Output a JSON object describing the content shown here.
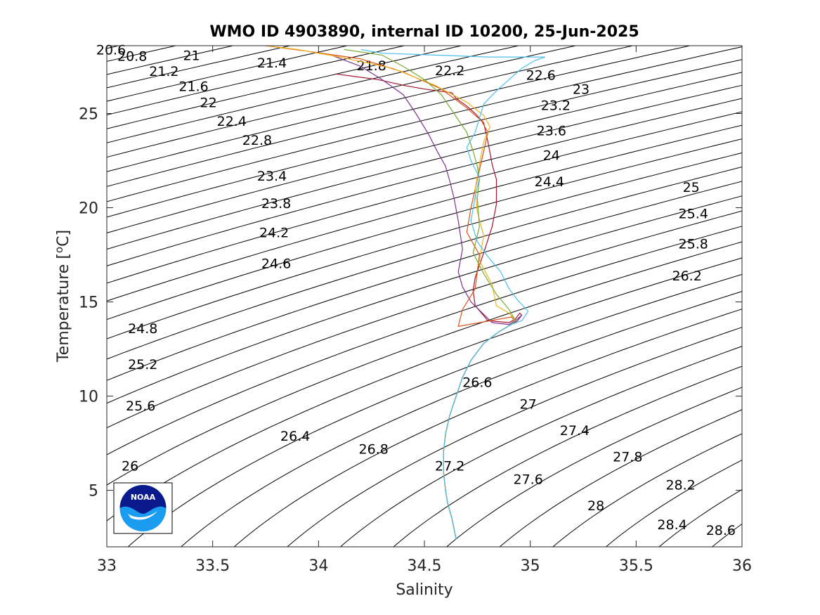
{
  "chart_data": {
    "type": "line",
    "title": "WMO ID 4903890, internal ID 10200, 25-Jun-2025",
    "xlabel": "Salinity",
    "ylabel": "Temperature [",
    "ylabel_unit_sup": "o",
    "ylabel_unit": "C]",
    "xlim": [
      33,
      36
    ],
    "ylim": [
      2.0,
      28.6
    ],
    "xticks": [
      33,
      33.5,
      34,
      34.5,
      35,
      35.5,
      36
    ],
    "xtick_labels": [
      "33",
      "33.5",
      "34",
      "34.5",
      "35",
      "35.5",
      "36"
    ],
    "yticks": [
      5,
      10,
      15,
      20,
      25
    ],
    "ytick_labels": [
      "5",
      "10",
      "15",
      "20",
      "25"
    ],
    "grid": false,
    "density_contours": {
      "levels_min": 20.6,
      "levels_max": 28.6,
      "step": 0.2,
      "labels": [
        {
          "text": "20.6",
          "s": 33.02,
          "t": 28.4
        },
        {
          "text": "20.8",
          "s": 33.12,
          "t": 28.05
        },
        {
          "text": "21",
          "s": 33.4,
          "t": 28.1
        },
        {
          "text": "21.2",
          "s": 33.27,
          "t": 27.25
        },
        {
          "text": "21.4",
          "s": 33.78,
          "t": 27.7
        },
        {
          "text": "21.6",
          "s": 33.41,
          "t": 26.45
        },
        {
          "text": "21.8",
          "s": 34.25,
          "t": 27.55
        },
        {
          "text": "22",
          "s": 33.48,
          "t": 25.6
        },
        {
          "text": "22.2",
          "s": 34.62,
          "t": 27.3
        },
        {
          "text": "22.4",
          "s": 33.59,
          "t": 24.6
        },
        {
          "text": "22.6",
          "s": 35.05,
          "t": 27.05
        },
        {
          "text": "22.8",
          "s": 33.71,
          "t": 23.6
        },
        {
          "text": "23",
          "s": 35.24,
          "t": 26.3
        },
        {
          "text": "23.2",
          "s": 35.12,
          "t": 25.45
        },
        {
          "text": "23.4",
          "s": 33.78,
          "t": 21.7
        },
        {
          "text": "23.6",
          "s": 35.1,
          "t": 24.1
        },
        {
          "text": "23.8",
          "s": 33.8,
          "t": 20.25
        },
        {
          "text": "24",
          "s": 35.1,
          "t": 22.8
        },
        {
          "text": "24.2",
          "s": 33.79,
          "t": 18.7
        },
        {
          "text": "24.4",
          "s": 35.09,
          "t": 21.4
        },
        {
          "text": "24.6",
          "s": 33.8,
          "t": 17.05
        },
        {
          "text": "24.8",
          "s": 33.17,
          "t": 13.6
        },
        {
          "text": "25",
          "s": 35.76,
          "t": 21.1
        },
        {
          "text": "25.2",
          "s": 33.17,
          "t": 11.7
        },
        {
          "text": "25.4",
          "s": 35.77,
          "t": 19.7
        },
        {
          "text": "25.6",
          "s": 33.16,
          "t": 9.5
        },
        {
          "text": "25.8",
          "s": 35.77,
          "t": 18.1
        },
        {
          "text": "26",
          "s": 33.11,
          "t": 6.3
        },
        {
          "text": "26.2",
          "s": 35.74,
          "t": 16.4
        },
        {
          "text": "26.4",
          "s": 33.89,
          "t": 7.9
        },
        {
          "text": "26.6",
          "s": 34.75,
          "t": 10.75
        },
        {
          "text": "26.8",
          "s": 34.26,
          "t": 7.2
        },
        {
          "text": "27",
          "s": 34.99,
          "t": 9.6
        },
        {
          "text": "27.2",
          "s": 34.62,
          "t": 6.3
        },
        {
          "text": "27.4",
          "s": 35.21,
          "t": 8.2
        },
        {
          "text": "27.6",
          "s": 34.99,
          "t": 5.6
        },
        {
          "text": "27.8",
          "s": 35.46,
          "t": 6.8
        },
        {
          "text": "28",
          "s": 35.31,
          "t": 4.2
        },
        {
          "text": "28.2",
          "s": 35.71,
          "t": 5.3
        },
        {
          "text": "28.4",
          "s": 35.67,
          "t": 3.2
        },
        {
          "text": "28.6",
          "s": 35.9,
          "t": 2.9
        }
      ]
    },
    "series": [
      {
        "color": "#a2142f",
        "s": [
          34.65,
          34.63,
          34.61,
          34.6,
          34.59,
          34.59,
          34.6,
          34.62,
          34.65,
          34.68,
          34.72,
          34.78,
          34.85,
          34.91,
          34.94,
          34.96,
          34.95,
          34.93,
          34.9,
          34.8,
          34.74,
          34.73,
          34.74,
          34.78,
          34.82,
          34.84,
          34.84,
          34.82,
          34.8,
          34.78,
          34.74,
          34.7,
          34.65,
          34.63,
          34.5,
          34.4,
          34.28,
          34.08
        ],
        "t": [
          2.4,
          3.5,
          4.3,
          5.0,
          6.0,
          7.0,
          8.0,
          9.0,
          10.0,
          11.0,
          11.9,
          12.8,
          13.4,
          13.8,
          14.0,
          14.3,
          14.4,
          14.1,
          13.9,
          14.0,
          14.8,
          15.6,
          16.3,
          17.6,
          19.0,
          20.2,
          21.5,
          22.3,
          23.5,
          24.5,
          25.0,
          25.4,
          25.8,
          26.1,
          26.3,
          26.5,
          26.8,
          27.1
        ]
      },
      {
        "color": "#7e2f8e",
        "s": [
          34.65,
          34.63,
          34.61,
          34.6,
          34.59,
          34.59,
          34.6,
          34.62,
          34.65,
          34.68,
          34.72,
          34.78,
          34.85,
          34.91,
          34.94,
          34.96,
          34.94,
          34.9,
          34.82,
          34.72,
          34.68,
          34.66,
          34.68,
          34.66,
          34.64,
          34.62,
          34.6,
          34.56,
          34.52,
          34.46,
          34.4,
          34.3,
          34.2,
          34.06
        ],
        "t": [
          2.4,
          3.5,
          4.3,
          5.0,
          6.0,
          7.0,
          8.0,
          9.0,
          10.0,
          11.0,
          11.9,
          12.8,
          13.4,
          13.8,
          14.0,
          14.3,
          14.1,
          13.8,
          13.9,
          15.0,
          15.8,
          16.6,
          17.8,
          19.3,
          20.5,
          21.4,
          22.2,
          23.0,
          23.9,
          25.0,
          26.0,
          26.8,
          27.5,
          28.1
        ]
      },
      {
        "color": "#d95319",
        "s": [
          34.65,
          34.63,
          34.61,
          34.6,
          34.59,
          34.59,
          34.6,
          34.62,
          34.65,
          34.68,
          34.72,
          34.78,
          34.85,
          34.91,
          34.93,
          34.91,
          34.66,
          34.68,
          34.74,
          34.76,
          34.7,
          34.72,
          34.75,
          34.78,
          34.8,
          34.77,
          34.7,
          34.58,
          34.4,
          34.2,
          33.95,
          33.75
        ],
        "t": [
          2.4,
          3.5,
          4.3,
          5.0,
          6.0,
          7.0,
          8.0,
          9.0,
          10.0,
          11.0,
          11.9,
          12.8,
          13.4,
          13.8,
          14.0,
          14.2,
          13.7,
          14.6,
          15.7,
          17.5,
          18.7,
          20.0,
          21.5,
          23.0,
          24.0,
          24.6,
          25.3,
          26.3,
          27.2,
          27.9,
          28.3,
          28.6
        ]
      },
      {
        "color": "#edb120",
        "s": [
          34.65,
          34.63,
          34.61,
          34.6,
          34.59,
          34.59,
          34.6,
          34.62,
          34.65,
          34.68,
          34.72,
          34.78,
          34.85,
          34.91,
          34.93,
          34.9,
          34.84,
          34.82,
          34.76,
          34.78,
          34.75,
          34.74,
          34.76,
          34.78,
          34.81,
          34.78,
          34.7,
          34.55,
          34.35,
          34.1,
          33.9,
          33.75
        ],
        "t": [
          2.4,
          3.5,
          4.3,
          5.0,
          6.0,
          7.0,
          8.0,
          9.0,
          10.0,
          11.0,
          11.9,
          12.8,
          13.4,
          13.8,
          14.0,
          14.4,
          14.8,
          15.9,
          17.2,
          18.5,
          19.8,
          21.0,
          22.3,
          23.5,
          24.3,
          24.9,
          25.6,
          26.5,
          27.4,
          28.0,
          28.4,
          28.6
        ]
      },
      {
        "color": "#77ac30",
        "s": [
          34.65,
          34.63,
          34.61,
          34.6,
          34.59,
          34.59,
          34.6,
          34.62,
          34.65,
          34.68,
          34.72,
          34.78,
          34.85,
          34.91,
          34.93,
          34.9,
          34.84,
          34.78,
          34.73,
          34.76,
          34.75,
          34.76,
          34.75,
          34.73,
          34.7,
          34.64,
          34.58,
          34.5,
          34.4,
          34.3,
          34.12
        ],
        "t": [
          2.4,
          3.5,
          4.3,
          5.0,
          6.0,
          7.0,
          8.0,
          9.0,
          10.0,
          11.0,
          11.9,
          12.8,
          13.4,
          13.8,
          14.0,
          14.6,
          15.4,
          16.5,
          17.6,
          19.0,
          20.5,
          21.5,
          22.2,
          23.0,
          24.0,
          25.0,
          26.0,
          26.8,
          27.5,
          28.1,
          28.4
        ]
      },
      {
        "color": "#4dbeee",
        "s": [
          34.65,
          34.63,
          34.61,
          34.6,
          34.59,
          34.59,
          34.6,
          34.62,
          34.65,
          34.68,
          34.72,
          34.78,
          34.85,
          34.91,
          34.96,
          34.99,
          34.94,
          34.9,
          34.86,
          34.8,
          34.75,
          34.72,
          34.74,
          34.76,
          34.72,
          34.7,
          34.74,
          34.78,
          34.84,
          34.9,
          34.96,
          35.02,
          35.07,
          34.98,
          34.8,
          34.55,
          34.3,
          34.2
        ],
        "t": [
          2.4,
          3.5,
          4.3,
          5.0,
          6.0,
          7.0,
          8.0,
          9.0,
          10.0,
          11.0,
          11.9,
          12.8,
          13.4,
          13.8,
          14.0,
          14.5,
          15.1,
          15.7,
          16.6,
          17.4,
          18.2,
          19.3,
          20.6,
          21.6,
          22.5,
          23.2,
          24.0,
          25.5,
          26.2,
          26.8,
          27.4,
          27.8,
          28.0,
          28.0,
          28.0,
          28.1,
          28.2,
          28.4
        ]
      }
    ]
  },
  "logo": {
    "text": "NOAA",
    "colors": {
      "dark_blue": "#0a1a8c",
      "light_blue": "#1e90e8",
      "sky_blue": "#19a2f0"
    }
  }
}
